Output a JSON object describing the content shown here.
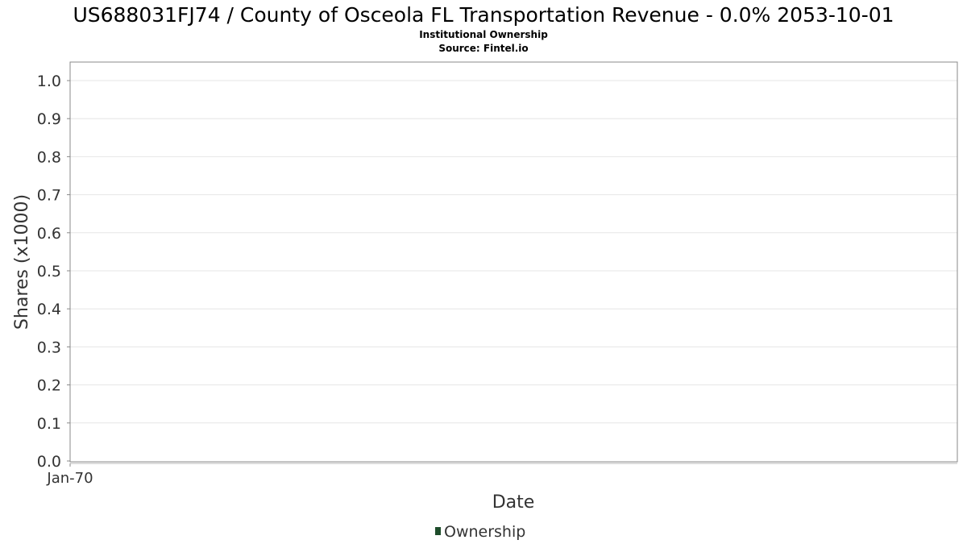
{
  "chart_data": {
    "type": "line",
    "title": "US688031FJ74 / County of Osceola FL Transportation Revenue - 0.0% 2053-10-01",
    "subtitle": "Institutional Ownership",
    "source": "Source: Fintel.io",
    "xlabel": "Date",
    "ylabel": "Shares (x1000)",
    "ylim": [
      0,
      1.0
    ],
    "y_ticks": [
      "0.0",
      "0.1",
      "0.2",
      "0.3",
      "0.4",
      "0.5",
      "0.6",
      "0.7",
      "0.8",
      "0.9",
      "1.0"
    ],
    "x_ticks": [
      "Jan-70"
    ],
    "grid": true,
    "legend_position": "bottom-center",
    "series": [
      {
        "name": "Ownership",
        "color": "#1e4d2b",
        "x": [],
        "values": []
      }
    ]
  }
}
